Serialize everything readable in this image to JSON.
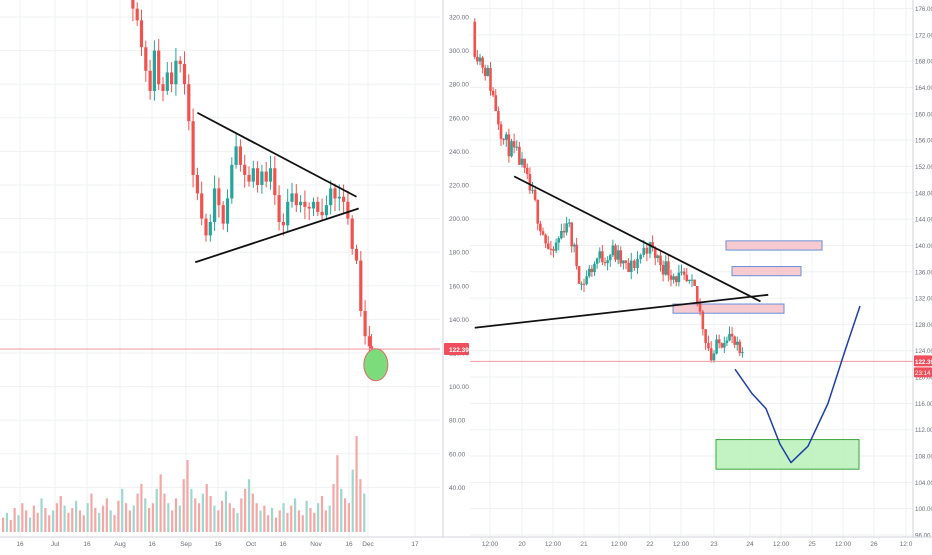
{
  "chart_data": [
    {
      "type": "candlestick",
      "panel": "left",
      "timeframe": "daily",
      "x_tick_labels": [
        "16",
        "Jul",
        "16",
        "Aug",
        "16",
        "Sep",
        "16",
        "Oct",
        "16",
        "Nov",
        "16",
        "Dec",
        "17"
      ],
      "y_tick_labels": [
        "320.00",
        "300.00",
        "280.00",
        "260.00",
        "240.00",
        "220.00",
        "200.00",
        "180.00",
        "160.00",
        "140.00",
        "120.00",
        "100.00",
        "80.00",
        "60.00",
        "40.00"
      ],
      "ylim": [
        30,
        330
      ],
      "last_price_label": "122.39",
      "last_price": 122.39,
      "grid": true,
      "close_series": [
        {
          "date": "Aug 07",
          "close": 325
        },
        {
          "date": "Aug 09",
          "close": 318
        },
        {
          "date": "Aug 11",
          "close": 302
        },
        {
          "date": "Aug 13",
          "close": 288
        },
        {
          "date": "Aug 15",
          "close": 276
        },
        {
          "date": "Aug 17",
          "close": 300
        },
        {
          "date": "Aug 19",
          "close": 280
        },
        {
          "date": "Aug 21",
          "close": 276
        },
        {
          "date": "Aug 23",
          "close": 287
        },
        {
          "date": "Aug 25",
          "close": 280
        },
        {
          "date": "Aug 27",
          "close": 294
        },
        {
          "date": "Aug 29",
          "close": 292
        },
        {
          "date": "Aug 31",
          "close": 280
        },
        {
          "date": "Sep 02",
          "close": 258
        },
        {
          "date": "Sep 04",
          "close": 226
        },
        {
          "date": "Sep 06",
          "close": 215
        },
        {
          "date": "Sep 08",
          "close": 200
        },
        {
          "date": "Sep 10",
          "close": 190
        },
        {
          "date": "Sep 12",
          "close": 198
        },
        {
          "date": "Sep 14",
          "close": 218
        },
        {
          "date": "Sep 16",
          "close": 208
        },
        {
          "date": "Sep 18",
          "close": 197
        },
        {
          "date": "Sep 20",
          "close": 212
        },
        {
          "date": "Sep 22",
          "close": 232
        },
        {
          "date": "Sep 24",
          "close": 243
        },
        {
          "date": "Sep 26",
          "close": 232
        },
        {
          "date": "Sep 28",
          "close": 226
        },
        {
          "date": "Sep 30",
          "close": 222
        },
        {
          "date": "Oct 02",
          "close": 230
        },
        {
          "date": "Oct 04",
          "close": 220
        },
        {
          "date": "Oct 06",
          "close": 228
        },
        {
          "date": "Oct 08",
          "close": 222
        },
        {
          "date": "Oct 10",
          "close": 230
        },
        {
          "date": "Oct 12",
          "close": 214
        },
        {
          "date": "Oct 14",
          "close": 198
        },
        {
          "date": "Oct 16",
          "close": 196
        },
        {
          "date": "Oct 18",
          "close": 210
        },
        {
          "date": "Oct 20",
          "close": 215
        },
        {
          "date": "Oct 22",
          "close": 208
        },
        {
          "date": "Oct 24",
          "close": 210
        },
        {
          "date": "Oct 26",
          "close": 207
        },
        {
          "date": "Oct 28",
          "close": 206
        },
        {
          "date": "Oct 30",
          "close": 210
        },
        {
          "date": "Nov 01",
          "close": 204
        },
        {
          "date": "Nov 03",
          "close": 202
        },
        {
          "date": "Nov 05",
          "close": 208
        },
        {
          "date": "Nov 07",
          "close": 218
        },
        {
          "date": "Nov 09",
          "close": 212
        },
        {
          "date": "Nov 11",
          "close": 213
        },
        {
          "date": "Nov 13",
          "close": 210
        },
        {
          "date": "Nov 15",
          "close": 200
        },
        {
          "date": "Nov 17",
          "close": 182
        },
        {
          "date": "Nov 19",
          "close": 175
        },
        {
          "date": "Nov 21",
          "close": 145
        },
        {
          "date": "Nov 23",
          "close": 130
        },
        {
          "date": "Nov 25",
          "close": 124
        },
        {
          "date": "Nov 26",
          "close": 122.39
        }
      ],
      "volume_bars": [
        6,
        8,
        5,
        10,
        7,
        12,
        9,
        6,
        11,
        8,
        14,
        10,
        7,
        9,
        12,
        15,
        11,
        8,
        10,
        13,
        9,
        7,
        12,
        16,
        10,
        8,
        11,
        14,
        9,
        7,
        13,
        18,
        12,
        9,
        11,
        16,
        20,
        14,
        10,
        12,
        18,
        24,
        16,
        12,
        9,
        14,
        11,
        22,
        30,
        18,
        14,
        12,
        16,
        20,
        15,
        11,
        9,
        13,
        17,
        12,
        10,
        8,
        14,
        18,
        22,
        16,
        12,
        9,
        11,
        7,
        10,
        6,
        9,
        12,
        8,
        11,
        14,
        9,
        7,
        13,
        10,
        8,
        12,
        15,
        9,
        11,
        20,
        32,
        18,
        14,
        12,
        26,
        40,
        22,
        16
      ],
      "annotations": [
        {
          "kind": "trendline",
          "points": [
            [
              "Sep 06",
              263
            ],
            [
              "Nov 19",
              213
            ]
          ]
        },
        {
          "kind": "trendline",
          "points": [
            [
              "Sep 05",
              174
            ],
            [
              "Nov 20",
              206
            ]
          ]
        },
        {
          "kind": "ellipse",
          "color": "#7cdc7c",
          "center": [
            "Nov 28",
            113
          ]
        }
      ]
    },
    {
      "type": "candlestick",
      "panel": "right",
      "timeframe": "intraday",
      "x_tick_labels": [
        "12:00",
        "20",
        "12:00",
        "21",
        "12:00",
        "22",
        "12:00",
        "23",
        "24",
        "12:00",
        "25",
        "12:00",
        "26",
        "12:0"
      ],
      "y_tick_labels": [
        "176.00",
        "172.00",
        "168.00",
        "164.00",
        "160.00",
        "156.00",
        "152.00",
        "148.00",
        "144.00",
        "140.00",
        "136.00",
        "132.00",
        "128.00",
        "124.00",
        "120.00",
        "116.00",
        "112.00",
        "108.00",
        "104.00",
        "100.00",
        "96.00"
      ],
      "ylim": [
        94,
        177
      ],
      "last_price_label": "122.39",
      "last_price": 122.39,
      "countdown_label": "23:14",
      "grid": true,
      "close_series": [
        {
          "t": "Nov 19 06:00",
          "close": 171
        },
        {
          "t": "Nov 19 12:00",
          "close": 166
        },
        {
          "t": "Nov 19 18:00",
          "close": 156
        },
        {
          "t": "Nov 20 00:00",
          "close": 153
        },
        {
          "t": "Nov 20 06:00",
          "close": 146
        },
        {
          "t": "Nov 20 12:00",
          "close": 138
        },
        {
          "t": "Nov 20 18:00",
          "close": 144
        },
        {
          "t": "Nov 21 00:00",
          "close": 134
        },
        {
          "t": "Nov 21 06:00",
          "close": 138
        },
        {
          "t": "Nov 21 12:00",
          "close": 139
        },
        {
          "t": "Nov 21 18:00",
          "close": 136
        },
        {
          "t": "Nov 22 00:00",
          "close": 140
        },
        {
          "t": "Nov 22 06:00",
          "close": 137
        },
        {
          "t": "Nov 22 12:00",
          "close": 135
        },
        {
          "t": "Nov 22 18:00",
          "close": 133
        },
        {
          "t": "Nov 23 00:00",
          "close": 123
        },
        {
          "t": "Nov 23 06:00",
          "close": 127
        },
        {
          "t": "Nov 23 12:00",
          "close": 122.39
        }
      ],
      "annotations": [
        {
          "kind": "trendline",
          "points": [
            [
              "Nov 19 21:00",
              150.5
            ],
            [
              "Nov 23 18:00",
              131.5
            ]
          ]
        },
        {
          "kind": "trendline",
          "points": [
            [
              "Nov 19 06:00",
              127.5
            ],
            [
              "Nov 23 21:00",
              132.5
            ]
          ]
        },
        {
          "kind": "rectangle",
          "color": "#f4c2c8",
          "range_y": [
            139.3,
            140.7
          ]
        },
        {
          "kind": "rectangle",
          "color": "#f4c2c8",
          "range_y": [
            135.4,
            136.8
          ]
        },
        {
          "kind": "rectangle",
          "color": "#f4c2c8",
          "range_y": [
            129.7,
            131.1
          ]
        },
        {
          "kind": "rectangle",
          "color": "#b8f0b8",
          "range_y": [
            106,
            110.5
          ]
        },
        {
          "kind": "projection-path",
          "color": "#1f3fa8",
          "points": [
            [
              121.2
            ],
            [
              117.5
            ],
            [
              115.2
            ],
            [
              109.8
            ],
            [
              107.0
            ],
            [
              109.5
            ],
            [
              116
            ],
            [
              124
            ],
            [
              130.8
            ]
          ]
        }
      ]
    }
  ],
  "colors": {
    "up": "#26a69a",
    "down": "#ef5350",
    "price_line": "#f29aa0",
    "price_tag": "#ef4f5c",
    "trendline": "#111111",
    "grid": "#eef0f3",
    "axis_text": "#6b6f7a",
    "projection": "#1f3fa8"
  }
}
